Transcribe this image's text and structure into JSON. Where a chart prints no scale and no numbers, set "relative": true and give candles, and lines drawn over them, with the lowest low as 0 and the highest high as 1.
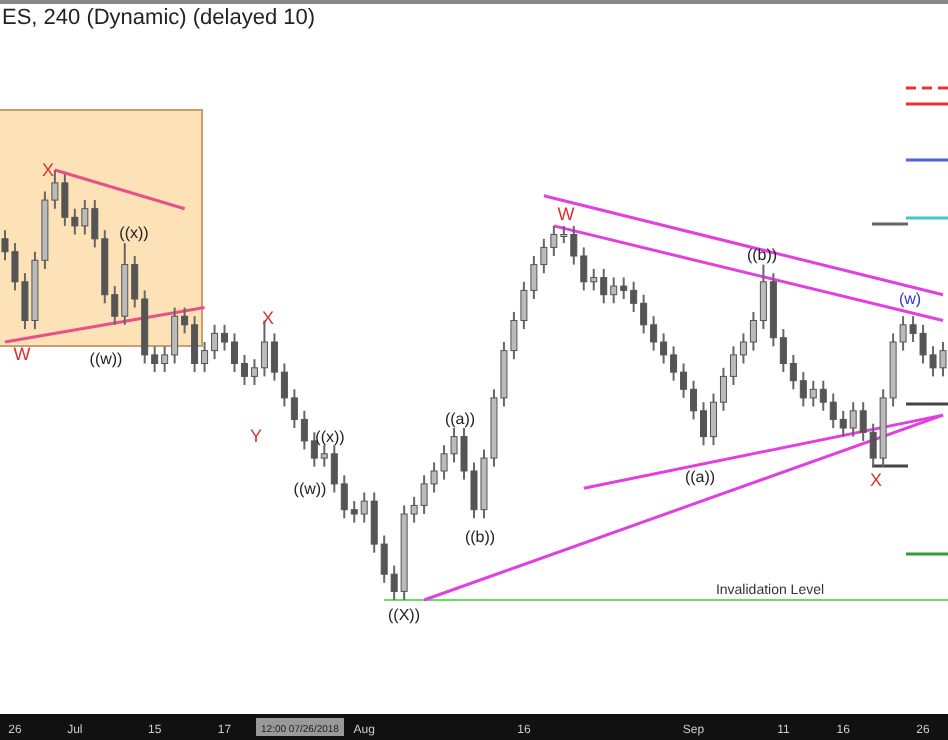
{
  "chart_data": {
    "type": "candlestick",
    "title": "ES, 240 (Dynamic) (delayed 10)",
    "relative": true,
    "tick_labels": "x",
    "categories": [
      null,
      "26",
      null,
      null,
      null,
      null,
      null,
      "Jul",
      null,
      null,
      null,
      null,
      null,
      null,
      null,
      "15",
      null,
      null,
      null,
      null,
      null,
      null,
      "17",
      null,
      null,
      null,
      null,
      null,
      null,
      null,
      null,
      null,
      null,
      null,
      null,
      null,
      "Aug",
      null,
      null,
      null,
      null,
      null,
      null,
      null,
      null,
      null,
      null,
      null,
      null,
      null,
      null,
      null,
      "16",
      null,
      null,
      null,
      null,
      null,
      null,
      null,
      null,
      null,
      null,
      null,
      null,
      null,
      null,
      null,
      null,
      "Sep",
      null,
      null,
      null,
      null,
      null,
      null,
      null,
      null,
      "11",
      null,
      null,
      null,
      null,
      null,
      "16",
      null,
      null,
      null,
      null,
      null,
      null,
      null,
      "26",
      null,
      null
    ],
    "ohlc": [
      [
        0.84,
        0.86,
        0.79,
        0.81
      ],
      [
        0.81,
        0.83,
        0.72,
        0.74
      ],
      [
        0.74,
        0.76,
        0.63,
        0.65
      ],
      [
        0.65,
        0.81,
        0.63,
        0.79
      ],
      [
        0.79,
        0.95,
        0.77,
        0.93
      ],
      [
        0.93,
        1.0,
        0.91,
        0.97
      ],
      [
        0.97,
        0.99,
        0.87,
        0.89
      ],
      [
        0.89,
        0.91,
        0.85,
        0.87
      ],
      [
        0.87,
        0.93,
        0.85,
        0.91
      ],
      [
        0.91,
        0.93,
        0.82,
        0.84
      ],
      [
        0.84,
        0.86,
        0.69,
        0.71
      ],
      [
        0.71,
        0.73,
        0.64,
        0.66
      ],
      [
        0.66,
        0.83,
        0.64,
        0.78
      ],
      [
        0.78,
        0.8,
        0.68,
        0.7
      ],
      [
        0.7,
        0.72,
        0.55,
        0.57
      ],
      [
        0.57,
        0.59,
        0.53,
        0.55
      ],
      [
        0.55,
        0.59,
        0.53,
        0.57
      ],
      [
        0.57,
        0.68,
        0.55,
        0.66
      ],
      [
        0.66,
        0.68,
        0.62,
        0.64
      ],
      [
        0.64,
        0.66,
        0.53,
        0.55
      ],
      [
        0.55,
        0.6,
        0.53,
        0.58
      ],
      [
        0.58,
        0.64,
        0.56,
        0.62
      ],
      [
        0.62,
        0.64,
        0.58,
        0.6
      ],
      [
        0.6,
        0.62,
        0.53,
        0.55
      ],
      [
        0.55,
        0.57,
        0.5,
        0.52
      ],
      [
        0.52,
        0.56,
        0.5,
        0.54
      ],
      [
        0.54,
        0.65,
        0.52,
        0.6
      ],
      [
        0.6,
        0.62,
        0.51,
        0.53
      ],
      [
        0.53,
        0.55,
        0.45,
        0.47
      ],
      [
        0.47,
        0.49,
        0.4,
        0.42
      ],
      [
        0.42,
        0.44,
        0.35,
        0.37
      ],
      [
        0.37,
        0.39,
        0.31,
        0.33
      ],
      [
        0.33,
        0.36,
        0.31,
        0.34
      ],
      [
        0.34,
        0.36,
        0.25,
        0.27
      ],
      [
        0.27,
        0.29,
        0.19,
        0.21
      ],
      [
        0.21,
        0.23,
        0.18,
        0.2
      ],
      [
        0.2,
        0.25,
        0.18,
        0.23
      ],
      [
        0.23,
        0.25,
        0.11,
        0.13
      ],
      [
        0.13,
        0.15,
        0.04,
        0.06
      ],
      [
        0.06,
        0.08,
        0.0,
        0.02
      ],
      [
        0.02,
        0.22,
        0.0,
        0.2
      ],
      [
        0.2,
        0.24,
        0.18,
        0.22
      ],
      [
        0.22,
        0.29,
        0.2,
        0.27
      ],
      [
        0.27,
        0.32,
        0.25,
        0.3
      ],
      [
        0.3,
        0.36,
        0.28,
        0.34
      ],
      [
        0.34,
        0.4,
        0.32,
        0.38
      ],
      [
        0.38,
        0.4,
        0.28,
        0.3
      ],
      [
        0.3,
        0.32,
        0.19,
        0.21
      ],
      [
        0.21,
        0.35,
        0.19,
        0.33
      ],
      [
        0.33,
        0.49,
        0.31,
        0.47
      ],
      [
        0.47,
        0.6,
        0.45,
        0.58
      ],
      [
        0.58,
        0.67,
        0.56,
        0.65
      ],
      [
        0.65,
        0.74,
        0.63,
        0.72
      ],
      [
        0.72,
        0.8,
        0.7,
        0.78
      ],
      [
        0.78,
        0.84,
        0.76,
        0.82
      ],
      [
        0.82,
        0.87,
        0.8,
        0.85
      ],
      [
        0.85,
        0.87,
        0.83,
        0.85
      ],
      [
        0.85,
        0.87,
        0.78,
        0.8
      ],
      [
        0.8,
        0.82,
        0.72,
        0.74
      ],
      [
        0.74,
        0.77,
        0.72,
        0.75
      ],
      [
        0.75,
        0.77,
        0.69,
        0.71
      ],
      [
        0.71,
        0.75,
        0.69,
        0.73
      ],
      [
        0.73,
        0.75,
        0.7,
        0.72
      ],
      [
        0.72,
        0.74,
        0.67,
        0.69
      ],
      [
        0.69,
        0.71,
        0.62,
        0.64
      ],
      [
        0.64,
        0.66,
        0.58,
        0.6
      ],
      [
        0.6,
        0.62,
        0.55,
        0.57
      ],
      [
        0.57,
        0.59,
        0.51,
        0.53
      ],
      [
        0.53,
        0.55,
        0.47,
        0.49
      ],
      [
        0.49,
        0.51,
        0.42,
        0.44
      ],
      [
        0.44,
        0.46,
        0.36,
        0.38
      ],
      [
        0.38,
        0.48,
        0.36,
        0.46
      ],
      [
        0.46,
        0.54,
        0.44,
        0.52
      ],
      [
        0.52,
        0.59,
        0.5,
        0.57
      ],
      [
        0.57,
        0.62,
        0.55,
        0.6
      ],
      [
        0.6,
        0.67,
        0.58,
        0.65
      ],
      [
        0.65,
        0.78,
        0.63,
        0.74
      ],
      [
        0.74,
        0.76,
        0.59,
        0.61
      ],
      [
        0.61,
        0.63,
        0.53,
        0.55
      ],
      [
        0.55,
        0.57,
        0.49,
        0.51
      ],
      [
        0.51,
        0.53,
        0.45,
        0.47
      ],
      [
        0.47,
        0.51,
        0.45,
        0.49
      ],
      [
        0.49,
        0.51,
        0.44,
        0.46
      ],
      [
        0.46,
        0.48,
        0.4,
        0.42
      ],
      [
        0.42,
        0.44,
        0.38,
        0.4
      ],
      [
        0.4,
        0.46,
        0.38,
        0.44
      ],
      [
        0.44,
        0.46,
        0.37,
        0.39
      ],
      [
        0.39,
        0.41,
        0.31,
        0.33
      ],
      [
        0.33,
        0.49,
        0.31,
        0.47
      ],
      [
        0.47,
        0.62,
        0.45,
        0.6
      ],
      [
        0.6,
        0.66,
        0.58,
        0.64
      ],
      [
        0.64,
        0.66,
        0.6,
        0.62
      ],
      [
        0.62,
        0.64,
        0.55,
        0.57
      ],
      [
        0.57,
        0.59,
        0.52,
        0.54
      ],
      [
        0.54,
        0.6,
        0.52,
        0.58
      ]
    ],
    "series": [
      {
        "type": "line",
        "color": "#e8508a",
        "values": [
          null,
          null,
          null,
          null,
          null,
          1.0,
          null,
          null,
          null,
          null,
          null,
          null,
          null,
          null,
          null,
          null,
          null,
          null,
          0.91,
          null,
          null,
          null,
          null,
          null,
          null,
          null,
          null,
          null,
          null,
          null,
          null,
          null,
          null,
          null,
          null,
          null,
          null,
          null,
          null,
          null,
          null,
          null,
          null,
          null,
          null,
          null,
          null,
          null,
          null,
          null,
          null,
          null,
          null,
          null,
          null,
          null,
          null,
          null,
          null,
          null,
          null,
          null,
          null,
          null,
          null,
          null,
          null,
          null,
          null,
          null,
          null,
          null,
          null,
          null,
          null,
          null,
          null,
          null,
          null,
          null,
          null,
          null,
          null,
          null,
          null,
          null,
          null,
          null,
          null,
          null,
          null,
          null,
          null,
          null,
          null
        ]
      },
      {
        "type": "line",
        "color": "#e8508a",
        "values": [
          0.6,
          null,
          null,
          null,
          null,
          null,
          null,
          null,
          null,
          null,
          null,
          null,
          null,
          null,
          null,
          null,
          null,
          null,
          null,
          null,
          0.68,
          null,
          null,
          null,
          null,
          null,
          null,
          null,
          null,
          null,
          null,
          null,
          null,
          null,
          null,
          null,
          null,
          null,
          null,
          null,
          null,
          null,
          null,
          null,
          null,
          null,
          null,
          null,
          null,
          null,
          null,
          null,
          null,
          null,
          null,
          null,
          null,
          null,
          null,
          null,
          null,
          null,
          null,
          null,
          null,
          null,
          null,
          null,
          null,
          null,
          null,
          null,
          null,
          null,
          null,
          null,
          null,
          null,
          null,
          null,
          null,
          null,
          null,
          null,
          null,
          null,
          null,
          null,
          null,
          null,
          null,
          null,
          null,
          null,
          null
        ]
      },
      {
        "type": "line",
        "color": "#e040e0",
        "values": [
          null,
          null,
          null,
          null,
          null,
          null,
          null,
          null,
          null,
          null,
          null,
          null,
          null,
          null,
          null,
          null,
          null,
          null,
          null,
          null,
          null,
          null,
          null,
          null,
          null,
          null,
          null,
          null,
          null,
          null,
          null,
          null,
          null,
          null,
          null,
          null,
          null,
          null,
          null,
          null,
          null,
          null,
          null,
          null,
          null,
          null,
          null,
          null,
          null,
          null,
          null,
          null,
          null,
          null,
          0.94,
          null,
          null,
          null,
          null,
          null,
          null,
          null,
          null,
          null,
          null,
          null,
          null,
          null,
          null,
          null,
          null,
          null,
          null,
          null,
          null,
          null,
          null,
          null,
          null,
          null,
          null,
          null,
          null,
          null,
          null,
          null,
          null,
          null,
          null,
          null,
          null,
          null,
          null,
          null,
          0.71
        ]
      },
      {
        "type": "line",
        "color": "#e040e0",
        "values": [
          null,
          null,
          null,
          null,
          null,
          null,
          null,
          null,
          null,
          null,
          null,
          null,
          null,
          null,
          null,
          null,
          null,
          null,
          null,
          null,
          null,
          null,
          null,
          null,
          null,
          null,
          null,
          null,
          null,
          null,
          null,
          null,
          null,
          null,
          null,
          null,
          null,
          null,
          null,
          null,
          null,
          null,
          null,
          null,
          null,
          null,
          null,
          null,
          null,
          null,
          null,
          null,
          null,
          null,
          null,
          0.87,
          null,
          null,
          null,
          null,
          null,
          null,
          null,
          null,
          null,
          null,
          null,
          null,
          null,
          null,
          null,
          null,
          null,
          null,
          null,
          null,
          null,
          null,
          null,
          null,
          null,
          null,
          null,
          null,
          null,
          null,
          null,
          null,
          null,
          null,
          null,
          null,
          null,
          null,
          0.65
        ]
      },
      {
        "type": "line",
        "color": "#e040e0",
        "values": [
          null,
          null,
          null,
          null,
          null,
          null,
          null,
          null,
          null,
          null,
          null,
          null,
          null,
          null,
          null,
          null,
          null,
          null,
          null,
          null,
          null,
          null,
          null,
          null,
          null,
          null,
          null,
          null,
          null,
          null,
          null,
          null,
          null,
          null,
          null,
          null,
          null,
          null,
          null,
          null,
          null,
          null,
          null,
          null,
          null,
          null,
          null,
          null,
          null,
          null,
          null,
          null,
          null,
          null,
          null,
          null,
          null,
          null,
          0.26,
          null,
          null,
          null,
          null,
          null,
          null,
          null,
          null,
          null,
          null,
          null,
          null,
          null,
          null,
          null,
          null,
          null,
          null,
          null,
          null,
          null,
          null,
          null,
          null,
          null,
          null,
          null,
          null,
          null,
          null,
          null,
          null,
          null,
          null,
          null,
          0.43
        ]
      },
      {
        "type": "line",
        "color": "#e040e0",
        "values": [
          null,
          null,
          null,
          null,
          null,
          null,
          null,
          null,
          null,
          null,
          null,
          null,
          null,
          null,
          null,
          null,
          null,
          null,
          null,
          null,
          null,
          null,
          null,
          null,
          null,
          null,
          null,
          null,
          null,
          null,
          null,
          null,
          null,
          null,
          null,
          null,
          null,
          null,
          null,
          null,
          null,
          null,
          0.0,
          null,
          null,
          null,
          null,
          null,
          null,
          null,
          null,
          null,
          null,
          null,
          null,
          null,
          null,
          null,
          null,
          null,
          null,
          null,
          null,
          null,
          null,
          null,
          null,
          null,
          null,
          null,
          null,
          null,
          null,
          null,
          null,
          null,
          null,
          null,
          null,
          null,
          null,
          null,
          null,
          null,
          null,
          null,
          null,
          null,
          null,
          null,
          null,
          null,
          null,
          null,
          0.43
        ]
      }
    ],
    "ref_lines": [
      {
        "axis": "y",
        "value": 0,
        "label": "Invalidation Level",
        "color": "#66dd66"
      }
    ],
    "annotations": [
      "X",
      "((x))",
      "W",
      "((w))",
      "X",
      "Y",
      "((x))",
      "((w))",
      "((a))",
      "((b))",
      "((X))",
      "W",
      "((b))",
      "((a))",
      "X",
      "(w)",
      "12:00 07/26/2018"
    ]
  }
}
